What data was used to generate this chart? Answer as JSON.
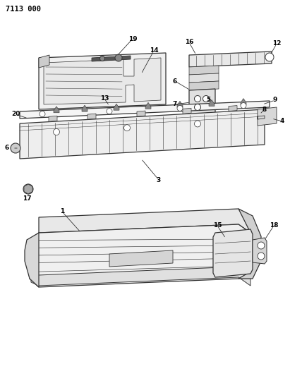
{
  "title_code": "7113 000",
  "bg_color": "#ffffff",
  "line_color": "#333333",
  "label_color": "#000000",
  "lw_main": 0.9,
  "lw_detail": 0.5
}
